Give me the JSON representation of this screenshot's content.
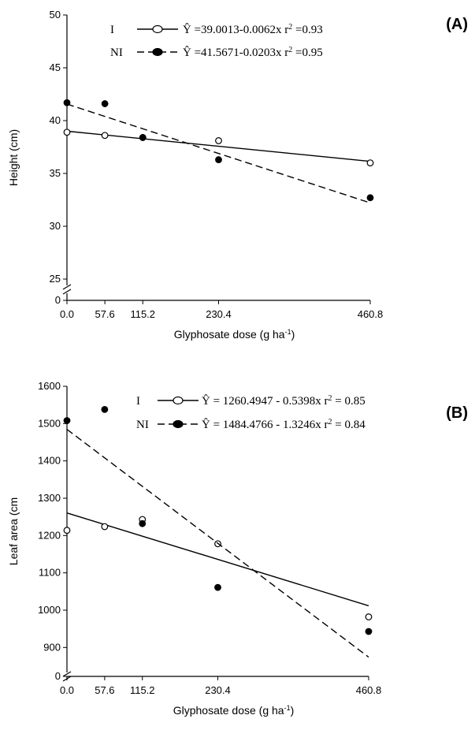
{
  "chart_data": [
    {
      "type": "scatter",
      "panel_label": "(A)",
      "xlabel": "Glyphosate dose (g ha-1)",
      "ylabel": "Height (cm)",
      "x_ticks": [
        "0.0",
        "57.6",
        "115.2",
        "230.4",
        "460.8"
      ],
      "x_values": [
        0,
        57.6,
        115.2,
        230.4,
        460.8
      ],
      "y_ticks": [
        "25",
        "30",
        "35",
        "40",
        "45",
        "50"
      ],
      "y_zero_label": "0",
      "ylim": [
        25,
        50
      ],
      "axis_break": true,
      "series": [
        {
          "name": "I",
          "marker": "open-circle",
          "line": "solid",
          "equation": "Ŷ =39.0013-0.0062x  r² =0.93",
          "y": [
            38.9,
            38.6,
            38.4,
            38.1,
            36.0
          ],
          "fit": {
            "intercept": 39.0013,
            "slope": -0.0062
          }
        },
        {
          "name": "NI",
          "marker": "filled-circle",
          "line": "dashed",
          "equation": "Ŷ =41.5671-0.0203x  r² =0.95",
          "y": [
            41.7,
            41.6,
            38.4,
            36.3,
            32.7
          ],
          "fit": {
            "intercept": 41.5671,
            "slope": -0.0203
          }
        }
      ]
    },
    {
      "type": "scatter",
      "panel_label": "(B)",
      "xlabel": "Glyphosate dose (g ha-1)",
      "ylabel": "Leaf area (cm",
      "x_ticks": [
        "0.0",
        "57.6",
        "115.2",
        "230.4",
        "460.8"
      ],
      "x_values": [
        0,
        57.6,
        115.2,
        230.4,
        460.8
      ],
      "y_ticks": [
        "900",
        "1000",
        "1100",
        "1200",
        "1300",
        "1400",
        "1500",
        "1600"
      ],
      "y_zero_label": "0",
      "ylim": [
        850,
        1600
      ],
      "axis_break": true,
      "series": [
        {
          "name": "I",
          "marker": "open-circle",
          "line": "solid",
          "equation": "Ŷ = 1260.4947 - 0.5398x   r² = 0.85",
          "y": [
            1214,
            1224,
            1243,
            1178,
            982
          ],
          "fit": {
            "intercept": 1260.4947,
            "slope": -0.5398
          }
        },
        {
          "name": "NI",
          "marker": "filled-circle",
          "line": "dashed",
          "equation": "Ŷ = 1484.4766 - 1.3246x   r² = 0.84",
          "y": [
            1508,
            1538,
            1232,
            1061,
            943
          ],
          "fit": {
            "intercept": 1484.4766,
            "slope": -1.3246
          }
        }
      ]
    }
  ]
}
